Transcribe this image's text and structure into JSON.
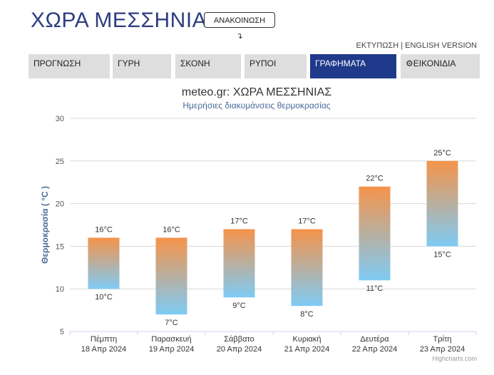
{
  "header": {
    "title": "ΧΩΡΑ ΜΕΣΣΗΝΙΑΣ",
    "announce_label": "ΑΝΑΚΟΙΝΩΣΗ ↴",
    "print_label": "ΕΚΤΥΠΩΣΗ",
    "separator": "|",
    "english_label": "ENGLISH VERSION"
  },
  "tabs": [
    {
      "label": "ΠΡΟΓΝΩΣΗ"
    },
    {
      "label": "ΓΥΡΗ"
    },
    {
      "label": "ΣΚΟΝΗ"
    },
    {
      "label": "ΡΥΠΟΙ"
    },
    {
      "label": "ΓΡΑΦΗΜΑΤΑ"
    },
    {
      "label": "⚙ΕΙΚΟΝΙΔΙΑ"
    }
  ],
  "colors": {
    "accent": "#1f3a8a",
    "bar_top": "#f5934a",
    "bar_bottom": "#7ecbf5"
  },
  "chart_data": {
    "type": "bar",
    "title": "meteo.gr: ΧΩΡΑ ΜΕΣΣΗΝΙΑΣ",
    "subtitle": "Ημερήσιες διακυμάνσεις θερμοκρασίας",
    "ylabel": "Θερμοκρασία ( °C )",
    "ylim": [
      5,
      30
    ],
    "yticks": [
      5,
      10,
      15,
      20,
      25,
      30
    ],
    "grid": true,
    "categories": [
      {
        "day": "Πέμπτη",
        "date": "18 Απρ 2024"
      },
      {
        "day": "Παρασκευή",
        "date": "19 Απρ 2024"
      },
      {
        "day": "Σάββατο",
        "date": "20 Απρ 2024"
      },
      {
        "day": "Κυριακή",
        "date": "21 Απρ 2024"
      },
      {
        "day": "Δευτέρα",
        "date": "22 Απρ 2024"
      },
      {
        "day": "Τρίτη",
        "date": "23 Απρ 2024"
      }
    ],
    "series": [
      {
        "low": [
          10,
          7,
          9,
          8,
          11,
          15
        ],
        "high": [
          16,
          16,
          17,
          17,
          22,
          25
        ]
      }
    ],
    "unit": "°C"
  },
  "credit": "Highcharts.com"
}
